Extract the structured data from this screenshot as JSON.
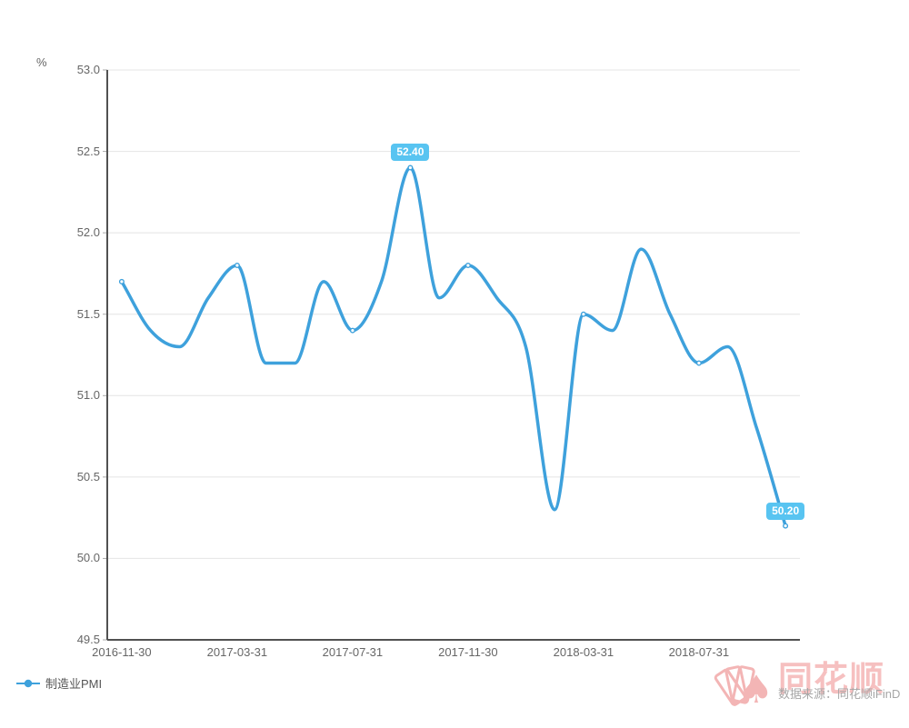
{
  "unit_label": "%",
  "legend": {
    "label": "制造业PMI"
  },
  "watermark": {
    "brand": "同花顺",
    "source_text": "数据来源：同花顺iFinD",
    "spade_glyph": "♠"
  },
  "colors": {
    "line": "#3ea1dc",
    "marker_fill": "#ffffff",
    "label_bg": "#58c4f1",
    "label_text": "#ffffff",
    "grid": "#e4e4e4",
    "axis": "#515151",
    "tick": "#aaaaaa",
    "tick_text": "#666666",
    "legend_text": "#555555",
    "watermark_pink": "#f3b5b5",
    "watermark_gray": "#a6a6a6"
  },
  "chart_data": {
    "type": "line",
    "title": "",
    "series": [
      {
        "name": "制造业PMI",
        "values": [
          51.7,
          51.4,
          51.3,
          51.6,
          51.8,
          51.2,
          51.2,
          51.7,
          51.4,
          51.7,
          52.4,
          51.6,
          51.8,
          51.6,
          51.3,
          50.3,
          51.5,
          51.4,
          51.9,
          51.5,
          51.2,
          51.3,
          50.8,
          50.2
        ]
      }
    ],
    "x": [
      "2016-11-30",
      "2016-12-31",
      "2017-01-31",
      "2017-02-28",
      "2017-03-31",
      "2017-04-30",
      "2017-05-31",
      "2017-06-30",
      "2017-07-31",
      "2017-08-31",
      "2017-09-30",
      "2017-10-31",
      "2017-11-30",
      "2017-12-31",
      "2018-01-31",
      "2018-02-28",
      "2018-03-31",
      "2018-04-30",
      "2018-05-31",
      "2018-06-30",
      "2018-07-31",
      "2018-08-31",
      "2018-09-30",
      "2018-10-31"
    ],
    "xlabel": "",
    "ylabel": "%",
    "ylim": [
      49.5,
      53.0
    ],
    "y_ticks": [
      "53.0",
      "52.5",
      "52.0",
      "51.5",
      "51.0",
      "50.5",
      "50.0",
      "49.5"
    ],
    "x_tick_indices": [
      0,
      4,
      8,
      12,
      16,
      20
    ],
    "x_tick_labels": [
      "2016-11-30",
      "2017-03-31",
      "2017-07-31",
      "2017-11-30",
      "2018-03-31",
      "2018-07-31"
    ],
    "marker_indices": [
      0,
      4,
      8,
      10,
      12,
      16,
      20,
      23
    ],
    "labeled_points": [
      {
        "index": 10,
        "value": 52.4,
        "text": "52.40"
      },
      {
        "index": 23,
        "value": 50.2,
        "text": "50.20"
      }
    ],
    "grid": true,
    "legend_position": "bottom-left"
  }
}
